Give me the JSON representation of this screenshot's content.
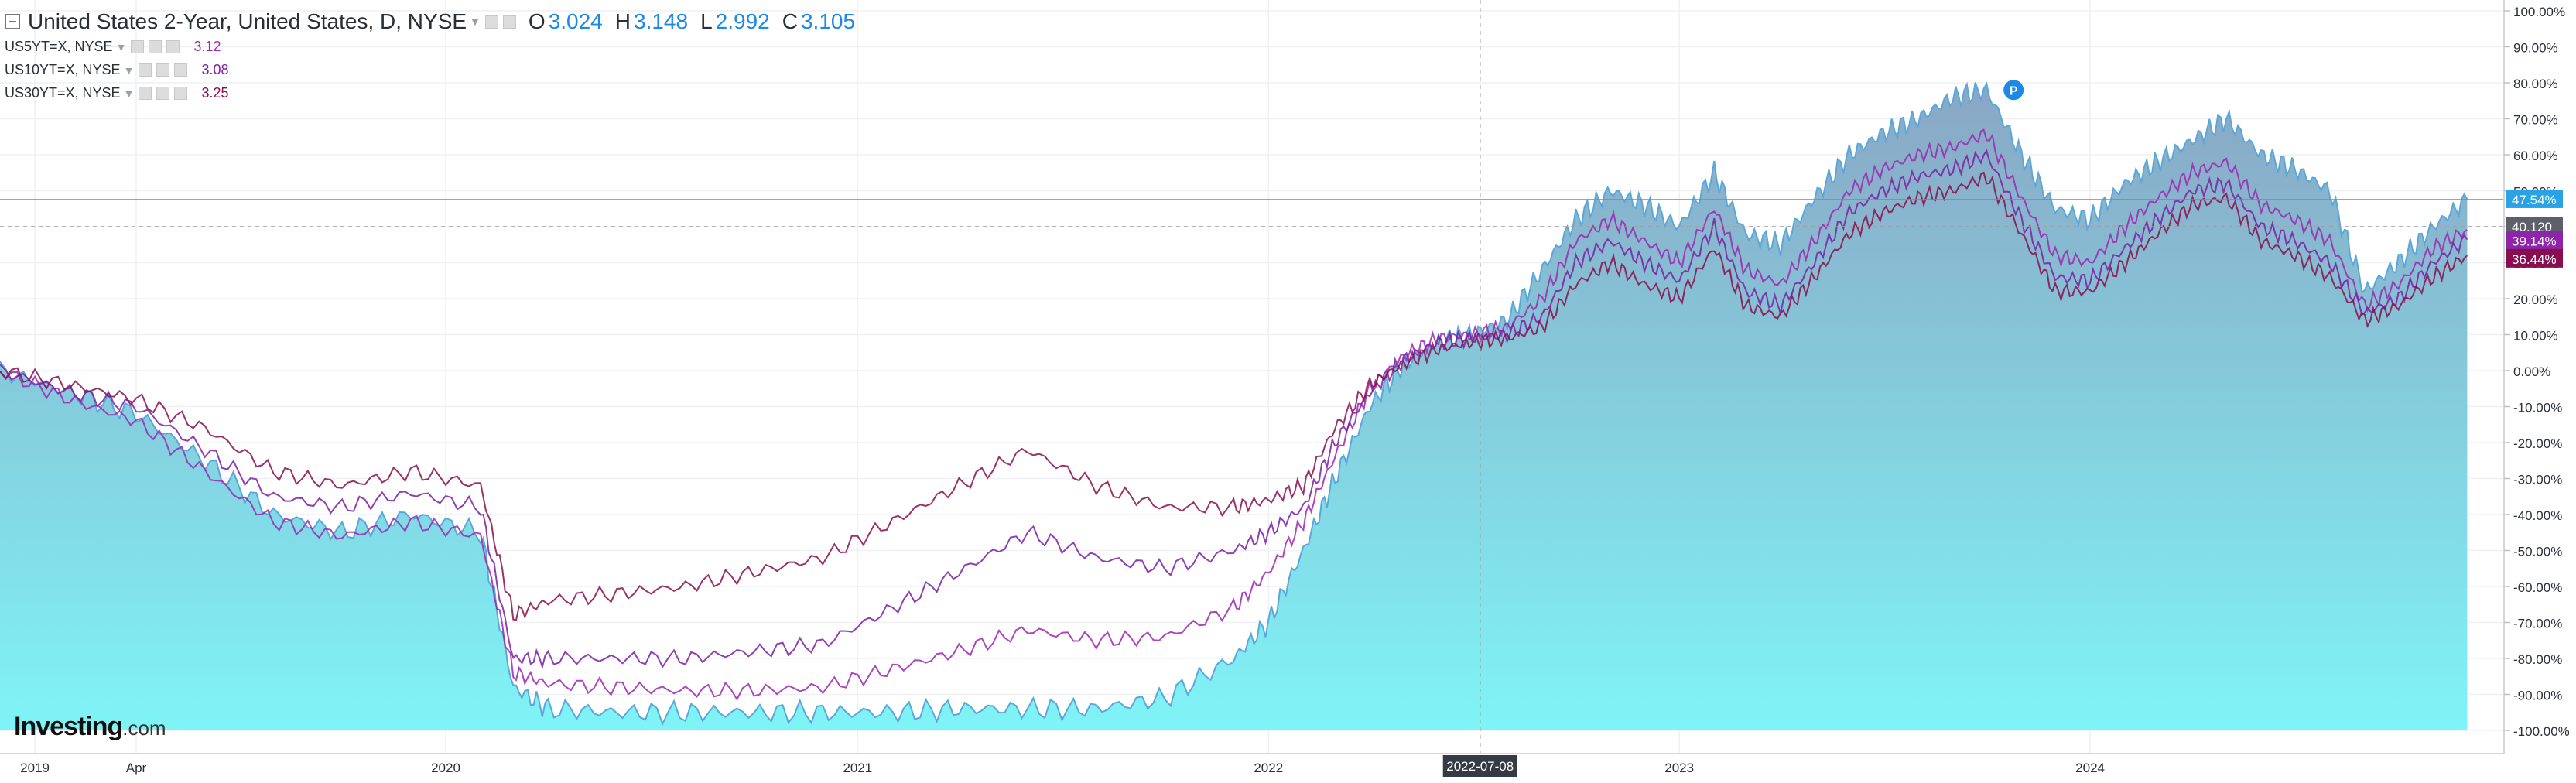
{
  "header": {
    "title": "United States 2-Year, United States, D, NYSE",
    "ohlc": [
      {
        "k": "O",
        "v": "3.024"
      },
      {
        "k": "H",
        "v": "3.148"
      },
      {
        "k": "L",
        "v": "2.992"
      },
      {
        "k": "C",
        "v": "3.105"
      }
    ]
  },
  "overlays": [
    {
      "name": "US5YT=X, NYSE",
      "value": "3.12",
      "color": "#9c27b0"
    },
    {
      "name": "US10YT=X, NYSE",
      "value": "3.08",
      "color": "#7b1fa2"
    },
    {
      "name": "US30YT=X, NYSE",
      "value": "3.25",
      "color": "#880e4f"
    }
  ],
  "logo": {
    "main": "Investing",
    "suffix": ".com"
  },
  "crosshair_date": "2022-07-08",
  "last_value_tags": [
    "47.54%",
    "40.120",
    "39.14%",
    "36.44%"
  ],
  "colors": {
    "area_fill_top": "#8aa6c4",
    "area_fill_bottom": "#7ff4f7",
    "area_line": "#5aa7d9",
    "grid": "#eef0f3",
    "axis_text": "#2a2e39",
    "tag_2y": "#29a3e6",
    "tag_close": "#5d606b",
    "tag_5y": "#8e24aa",
    "tag_30y": "#880e4f"
  },
  "chart_data": {
    "type": "line",
    "title": "United States 2-Year, United States, D, NYSE",
    "x_tick_labels": [
      "2019",
      "Apr",
      "2020",
      "2021",
      "2022",
      "2023",
      "2024"
    ],
    "y_axis": {
      "unit": "%",
      "min": -100,
      "max": 100,
      "step": 10,
      "grid": true
    },
    "y_tick_labels": [
      "100.00%",
      "90.00%",
      "80.00%",
      "70.00%",
      "60.00%",
      "50.00%",
      "40.00%",
      "30.00%",
      "20.00%",
      "10.00%",
      "0.00%",
      "-10.00%",
      "-20.00%",
      "-30.00%",
      "-40.00%",
      "-50.00%",
      "-60.00%",
      "-70.00%",
      "-80.00%",
      "-90.00%",
      "-100.00%"
    ],
    "x": [
      "2018-12",
      "2019-02",
      "2019-04",
      "2019-06",
      "2019-08",
      "2019-10",
      "2019-12",
      "2020-02",
      "2020-03",
      "2020-04",
      "2020-06",
      "2020-08",
      "2020-10",
      "2020-12",
      "2021-02",
      "2021-04",
      "2021-06",
      "2021-08",
      "2021-10",
      "2021-12",
      "2022-01",
      "2022-02",
      "2022-03",
      "2022-04",
      "2022-05",
      "2022-06",
      "2022-07",
      "2022-08",
      "2022-09",
      "2022-10",
      "2022-11",
      "2022-12",
      "2023-01",
      "2023-02",
      "2023-03",
      "2023-04",
      "2023-05",
      "2023-06",
      "2023-07",
      "2023-08",
      "2023-09",
      "2023-10",
      "2023-11",
      "2023-12",
      "2024-01",
      "2024-02",
      "2024-03",
      "2024-04",
      "2024-05",
      "2024-06",
      "2024-07",
      "2024-08",
      "2024-09",
      "2024-10",
      "2024-11",
      "2024-12"
    ],
    "series": [
      {
        "name": "United States 2-Year",
        "kind": "area",
        "change_pct": [
          0,
          -6,
          -12,
          -25,
          -40,
          -45,
          -40,
          -45,
          -88,
          -94,
          -95,
          -95,
          -95,
          -95,
          -95,
          -94,
          -94,
          -94,
          -91,
          -80,
          -70,
          -50,
          -30,
          -10,
          2,
          8,
          10,
          14,
          28,
          42,
          50,
          46,
          40,
          55,
          38,
          35,
          48,
          60,
          66,
          70,
          76,
          78,
          60,
          45,
          42,
          52,
          58,
          64,
          70,
          60,
          56,
          50,
          22,
          30,
          40,
          47.54
        ]
      },
      {
        "name": "US5YT=X, NYSE",
        "kind": "line",
        "change_pct": [
          0,
          -8,
          -14,
          -28,
          -42,
          -46,
          -42,
          -46,
          -84,
          -87,
          -88,
          -89,
          -89,
          -88,
          -83,
          -78,
          -72,
          -75,
          -74,
          -66,
          -56,
          -42,
          -24,
          -5,
          4,
          9,
          10,
          12,
          20,
          36,
          42,
          36,
          30,
          45,
          28,
          24,
          36,
          50,
          56,
          60,
          62,
          66,
          48,
          32,
          30,
          40,
          48,
          55,
          58,
          46,
          42,
          36,
          18,
          24,
          34,
          39.14
        ]
      },
      {
        "name": "US10YT=X, NYSE",
        "kind": "line",
        "change_pct": [
          0,
          -6,
          -10,
          -22,
          -35,
          -38,
          -34,
          -38,
          -80,
          -80,
          -80,
          -80,
          -78,
          -76,
          -66,
          -56,
          -45,
          -52,
          -55,
          -50,
          -45,
          -38,
          -20,
          -6,
          3,
          8,
          9,
          10,
          15,
          30,
          36,
          30,
          25,
          40,
          22,
          18,
          30,
          44,
          50,
          54,
          56,
          60,
          42,
          26,
          25,
          34,
          42,
          50,
          52,
          40,
          36,
          30,
          16,
          20,
          30,
          36.44
        ]
      },
      {
        "name": "US30YT=X, NYSE",
        "kind": "line",
        "change_pct": [
          0,
          -4,
          -8,
          -16,
          -28,
          -32,
          -28,
          -32,
          -68,
          -64,
          -62,
          -60,
          -56,
          -52,
          -42,
          -32,
          -22,
          -32,
          -38,
          -38,
          -36,
          -32,
          -16,
          -4,
          2,
          6,
          8,
          9,
          12,
          24,
          30,
          24,
          20,
          34,
          18,
          15,
          26,
          38,
          44,
          48,
          50,
          54,
          38,
          22,
          22,
          30,
          38,
          46,
          48,
          36,
          32,
          26,
          14,
          18,
          26,
          32
        ]
      }
    ]
  }
}
